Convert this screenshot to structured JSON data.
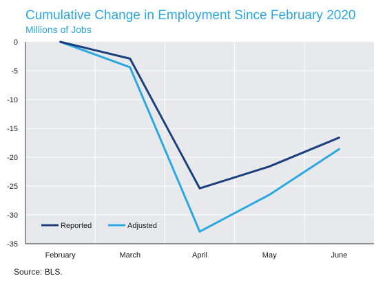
{
  "colors": {
    "plot_background": "#e8e9ec",
    "grid": "#ffffff",
    "title": "#2aa8df",
    "reported": "#1b3f7c",
    "adjusted": "#2aa8df"
  },
  "chart_data": {
    "type": "line",
    "title": "Cumulative Change in Employment Since February 2020",
    "subtitle": "Millions of Jobs",
    "source": "Source: BLS.",
    "xlabel": "",
    "ylabel": "",
    "categories": [
      "February",
      "March",
      "April",
      "May",
      "June"
    ],
    "ylim": [
      -35,
      0
    ],
    "yticks": [
      0,
      -5,
      -10,
      -15,
      -20,
      -25,
      -30,
      -35
    ],
    "grid": true,
    "legend_position": "bottom-left",
    "series": [
      {
        "name": "Reported",
        "color": "#1b3f7c",
        "values": [
          0,
          -2.9,
          -25.4,
          -21.6,
          -16.6
        ]
      },
      {
        "name": "Adjusted",
        "color": "#2aa8df",
        "values": [
          0,
          -4.4,
          -32.9,
          -26.5,
          -18.6
        ]
      }
    ]
  }
}
